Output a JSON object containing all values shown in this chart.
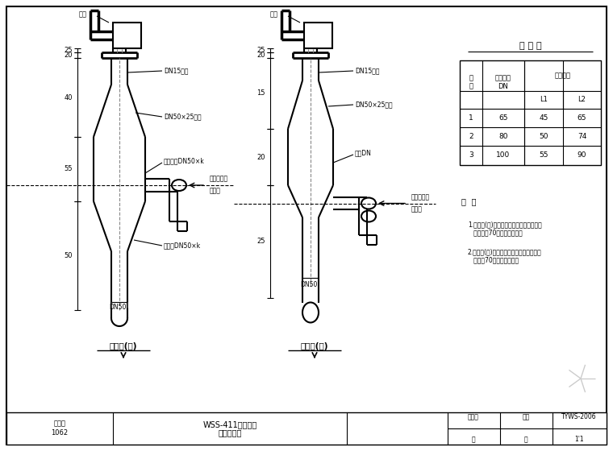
{
  "bg_color": "#ffffff",
  "table_title": "尺 寸 表",
  "table_rows": [
    [
      "1",
      "65",
      "45",
      "65"
    ],
    [
      "2",
      "80",
      "50",
      "74"
    ],
    [
      "3",
      "100",
      "55",
      "90"
    ]
  ],
  "label1": "安装图(一)",
  "label2": "安装图(二)",
  "note_title": "备  注",
  "note1": "1.安装图(一)只适用于设备向前出水管管径\n   即不大于70的温度计安装。",
  "note2": "2.安装图(二)只适用于设备向前出水管管径\n   即大于70的温度计安装。",
  "bottom_left1": "通用图",
  "bottom_left2": "1062",
  "bottom_center1": "WSS-411压力式温",
  "bottom_center2": "度计安装图",
  "bottom_col3_top": "图标号",
  "bottom_col3_bot": "页",
  "bottom_col4_top": "图号",
  "bottom_col4_bot": "页",
  "bottom_col5_top": "TYWS-2006",
  "bottom_col5_bot": "1'1",
  "arrow_label1": "液态循环水",
  "arrow_label2": "温度口",
  "text_biaopan": "表盘",
  "text_dn15_1": "DN15毛管",
  "text_dn50_outer1": "DN50×25外套",
  "text_tee1": "外套三通DN50×k",
  "text_reducer": "异径管DN50×k",
  "text_dn15_2": "DN15传管",
  "text_dn50_outer2": "DN50×25套管",
  "text_tee2": "三通DN",
  "text_dn_bottom1": "DN50",
  "text_dn_bottom2": "DN50"
}
